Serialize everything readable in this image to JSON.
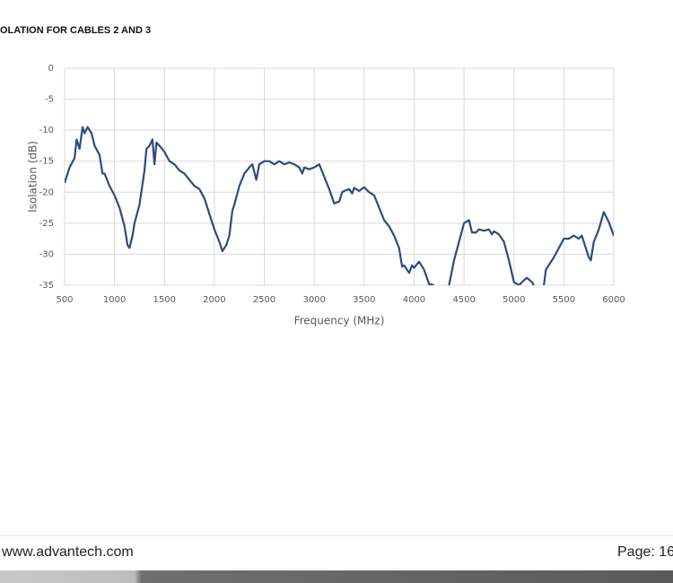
{
  "header": {
    "title": "OLATION FOR CABLES 2 AND 3"
  },
  "chart_data": {
    "type": "line",
    "xlabel": "Frequency (MHz)",
    "ylabel": "Isolation (dB)",
    "x": [
      500,
      550,
      600,
      620,
      650,
      680,
      700,
      730,
      770,
      800,
      850,
      880,
      900,
      950,
      1000,
      1050,
      1100,
      1130,
      1150,
      1180,
      1200,
      1250,
      1300,
      1320,
      1350,
      1380,
      1400,
      1420,
      1450,
      1500,
      1550,
      1600,
      1650,
      1700,
      1750,
      1800,
      1850,
      1900,
      1950,
      2000,
      2050,
      2080,
      2120,
      2150,
      2180,
      2200,
      2250,
      2300,
      2350,
      2380,
      2420,
      2450,
      2500,
      2550,
      2600,
      2650,
      2700,
      2750,
      2800,
      2850,
      2880,
      2900,
      2950,
      3000,
      3050,
      3100,
      3150,
      3200,
      3250,
      3280,
      3300,
      3350,
      3380,
      3400,
      3450,
      3500,
      3550,
      3600,
      3650,
      3700,
      3750,
      3800,
      3850,
      3880,
      3900,
      3950,
      3980,
      4000,
      4050,
      4100,
      4150,
      4200,
      4250,
      4350,
      4400,
      4450,
      4500,
      4550,
      4580,
      4620,
      4650,
      4700,
      4750,
      4780,
      4800,
      4850,
      4900,
      4950,
      5000,
      5050,
      5100,
      5130,
      5180,
      5200,
      5250,
      5300,
      5320,
      5400,
      5450,
      5500,
      5550,
      5600,
      5650,
      5680,
      5720,
      5750,
      5770,
      5800,
      5850,
      5900,
      5950,
      6000
    ],
    "series": [
      {
        "color": "#2f4b7c",
        "values": [
          -18.5,
          -16,
          -14.5,
          -11.5,
          -13,
          -9.5,
          -10.5,
          -9.5,
          -10.5,
          -12.5,
          -14,
          -17,
          -17,
          -19,
          -20.5,
          -22.5,
          -25.5,
          -28.5,
          -29,
          -27,
          -25,
          -22,
          -16.5,
          -13,
          -12.5,
          -11.5,
          -15.5,
          -12,
          -12.5,
          -13.5,
          -15,
          -15.5,
          -16.5,
          -17,
          -18,
          -19,
          -19.5,
          -21,
          -23.5,
          -26,
          -28,
          -29.5,
          -28.5,
          -27,
          -23,
          -22,
          -19,
          -17,
          -16,
          -15.5,
          -18,
          -15.5,
          -15,
          -15,
          -15.5,
          -15,
          -15.5,
          -15.2,
          -15.5,
          -16,
          -17,
          -16,
          -16.3,
          -16,
          -15.5,
          -17.5,
          -19.5,
          -21.8,
          -21.5,
          -20,
          -19.8,
          -19.5,
          -20.2,
          -19.3,
          -19.8,
          -19.2,
          -20,
          -20.5,
          -22.5,
          -24.5,
          -25.5,
          -27,
          -29,
          -32,
          -31.8,
          -33,
          -31.8,
          -32.2,
          -31.2,
          -32.5,
          -34.8,
          -35,
          null,
          -35,
          -31,
          -28,
          -25,
          -24.5,
          -26.5,
          -26.5,
          -26,
          -26.2,
          -26,
          -26.8,
          -26.3,
          -26.8,
          -28,
          -31,
          -34.5,
          -35,
          -34.2,
          -33.8,
          -34.5,
          -35,
          null,
          -35,
          -32.5,
          -30.5,
          -29,
          -27.5,
          -27.5,
          -27,
          -27.5,
          -27,
          -29,
          -30.5,
          -31,
          -28,
          -26,
          -23.2,
          -24.8,
          -27
        ]
      }
    ],
    "xlim": [
      500,
      6000
    ],
    "ylim": [
      -35,
      0
    ],
    "xticks": [
      500,
      1000,
      1500,
      2000,
      2500,
      3000,
      3500,
      4000,
      4500,
      5000,
      5500,
      6000
    ],
    "yticks": [
      0,
      -5,
      -10,
      -15,
      -20,
      -25,
      -30,
      -35
    ],
    "grid": true
  },
  "footer": {
    "website": "www.advantech.com",
    "page": "Page: 16"
  }
}
